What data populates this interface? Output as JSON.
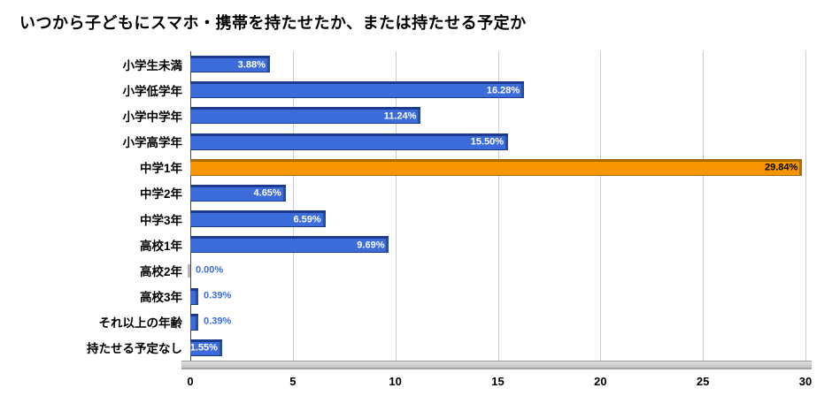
{
  "title": "いつから子どもにスマホ・携帯を持たせたか、または持たせる予定か",
  "chart_data": {
    "type": "bar",
    "orientation": "horizontal",
    "title": "いつから子どもにスマホ・携帯を持たせたか、または持たせる予定か",
    "xlabel": "",
    "ylabel": "",
    "xlim": [
      0,
      30
    ],
    "ticks": [
      0,
      5,
      10,
      15,
      20,
      25,
      30
    ],
    "grid": true,
    "legend": false,
    "categories": [
      "小学生未満",
      "小学低学年",
      "小学中学年",
      "小学高学年",
      "中学1年",
      "中学2年",
      "中学3年",
      "高校1年",
      "高校2年",
      "高校3年",
      "それ以上の年齢",
      "持たせる予定なし"
    ],
    "values": [
      3.88,
      16.28,
      11.24,
      15.5,
      29.84,
      4.65,
      6.59,
      9.69,
      0.0,
      0.39,
      0.39,
      1.55
    ],
    "labels": [
      "3.88%",
      "16.28%",
      "11.24%",
      "15.50%",
      "29.84%",
      "4.65%",
      "6.59%",
      "9.69%",
      "0.00%",
      "0.39%",
      "0.39%",
      "1.55%"
    ],
    "highlight_index": 4,
    "colors": {
      "bar_fill": "#3b6cd9",
      "bar_edge": "#1c3a8e",
      "highlight_fill": "#f79500",
      "highlight_edge": "#a96a00",
      "inside_label": "#ffffff",
      "highlight_label": "#000000",
      "outside_label": "#3b6cd9",
      "grid": "#cccccc",
      "axis_strip": "#cccccc"
    }
  }
}
